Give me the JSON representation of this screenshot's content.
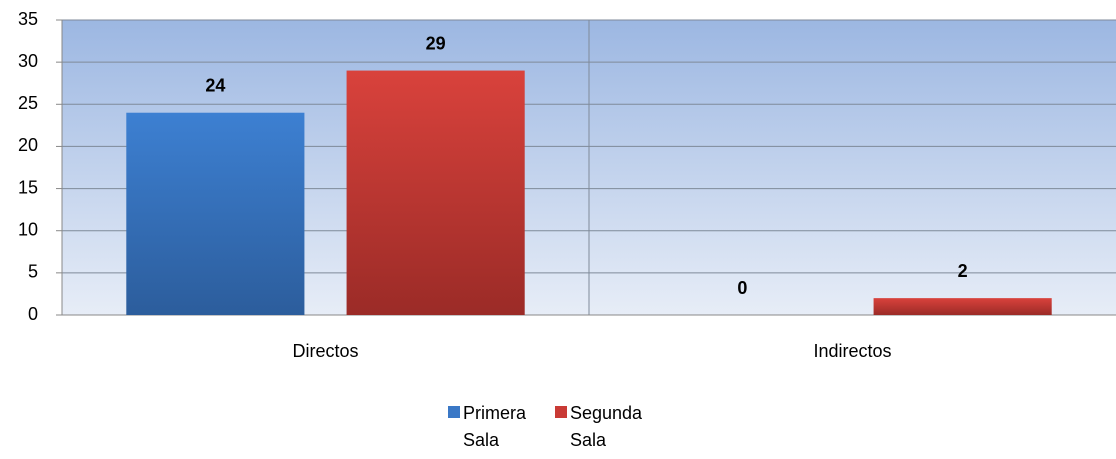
{
  "chart_data": {
    "type": "bar",
    "categories": [
      "Directos",
      "Indirectos"
    ],
    "series": [
      {
        "name": "Primera Sala",
        "color": "#3a78c6",
        "values": [
          24,
          0
        ]
      },
      {
        "name": "Segunda Sala",
        "color": "#c93a35",
        "values": [
          29,
          2
        ]
      }
    ],
    "ylim": [
      0,
      35
    ],
    "yticks": [
      0,
      5,
      10,
      15,
      20,
      25,
      30,
      35
    ],
    "grid": true,
    "legend": "bottom"
  }
}
